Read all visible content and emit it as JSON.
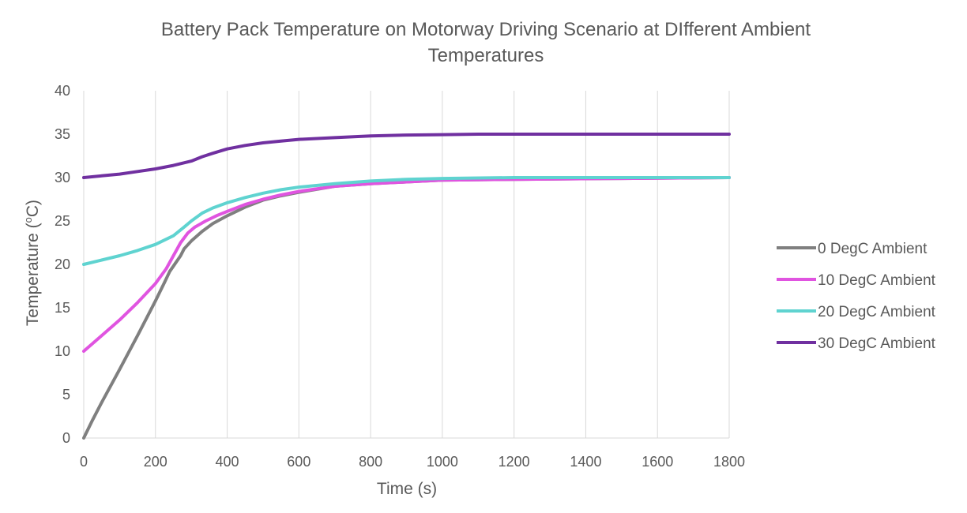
{
  "chart_data": {
    "type": "line",
    "title": "Battery Pack Temperature on Motorway Driving Scenario at DIfferent Ambient",
    "title_line2": "Temperatures",
    "xlabel": "Time (s)",
    "ylabel": "Temperature (°C)",
    "ylabel_parts": {
      "before": "Temperature (",
      "sup": "o",
      "after": "C)"
    },
    "xlim": [
      0,
      1800
    ],
    "ylim": [
      0,
      40
    ],
    "x_ticks": [
      0,
      200,
      400,
      600,
      800,
      1000,
      1200,
      1400,
      1600,
      1800
    ],
    "x_tick_labels": [
      "0",
      "200",
      "400",
      "600",
      "800",
      "1000",
      "1200",
      "1400",
      "1600",
      "1800"
    ],
    "y_ticks": [
      0,
      5,
      10,
      15,
      20,
      25,
      30,
      35,
      40
    ],
    "y_tick_labels": [
      "0",
      "5",
      "10",
      "15",
      "20",
      "25",
      "30",
      "35",
      "40"
    ],
    "grid": "vertical",
    "legend_position": "right",
    "series": [
      {
        "name": "0 DegC Ambient",
        "color": "#7f7f7f",
        "x": [
          0,
          25,
          50,
          100,
          150,
          200,
          225,
          240,
          250,
          270,
          280,
          300,
          330,
          360,
          400,
          450,
          500,
          550,
          600,
          700,
          800,
          900,
          1000,
          1200,
          1500,
          1800
        ],
        "y": [
          0,
          2.1,
          4.1,
          7.9,
          11.8,
          15.8,
          17.9,
          19.2,
          19.8,
          21.0,
          21.8,
          22.7,
          23.8,
          24.7,
          25.6,
          26.6,
          27.4,
          27.9,
          28.3,
          29.0,
          29.3,
          29.5,
          29.7,
          29.8,
          29.9,
          30.0
        ]
      },
      {
        "name": "10 DegC Ambient",
        "color": "#e054e0",
        "x": [
          0,
          50,
          100,
          150,
          200,
          230,
          250,
          270,
          290,
          310,
          340,
          370,
          400,
          450,
          500,
          550,
          600,
          700,
          800,
          900,
          1000,
          1200,
          1500,
          1800
        ],
        "y": [
          10,
          11.8,
          13.6,
          15.6,
          17.8,
          19.5,
          21.0,
          22.5,
          23.6,
          24.3,
          25.0,
          25.6,
          26.1,
          26.9,
          27.5,
          28.0,
          28.4,
          29.0,
          29.3,
          29.5,
          29.7,
          29.8,
          29.9,
          30.0
        ]
      },
      {
        "name": "20 DegC Ambient",
        "color": "#5fd3d0",
        "x": [
          0,
          50,
          100,
          150,
          200,
          250,
          280,
          300,
          330,
          360,
          400,
          450,
          500,
          550,
          600,
          700,
          800,
          900,
          1000,
          1200,
          1500,
          1800
        ],
        "y": [
          20,
          20.5,
          21.0,
          21.6,
          22.3,
          23.3,
          24.3,
          25.0,
          25.9,
          26.5,
          27.1,
          27.7,
          28.2,
          28.6,
          28.9,
          29.3,
          29.6,
          29.8,
          29.9,
          30.0,
          30.0,
          30.0
        ]
      },
      {
        "name": "30 DegC Ambient",
        "color": "#7030a0",
        "x": [
          0,
          50,
          100,
          150,
          200,
          250,
          300,
          330,
          360,
          400,
          450,
          500,
          550,
          600,
          700,
          800,
          900,
          1000,
          1100,
          1200,
          1400,
          1600,
          1800
        ],
        "y": [
          30,
          30.2,
          30.4,
          30.7,
          31.0,
          31.4,
          31.9,
          32.4,
          32.8,
          33.3,
          33.7,
          34.0,
          34.2,
          34.4,
          34.6,
          34.8,
          34.9,
          34.95,
          35.0,
          35.0,
          35.0,
          35.0,
          35.0
        ]
      }
    ]
  }
}
